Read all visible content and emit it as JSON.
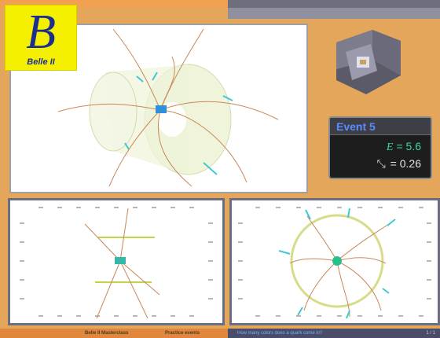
{
  "logo": {
    "letter": "B",
    "text": "Belle II"
  },
  "event": {
    "title": "Event 5",
    "energy_symbol": "E",
    "energy_value": "= 5.6",
    "angle_symbol": "⤡",
    "angle_value": "= 0.26"
  },
  "footer": {
    "course": "Belle II Masterclass",
    "section": "Practice events",
    "question": "How many colors does a quark come in?",
    "page": "1 / 1"
  },
  "colors": {
    "background": "#e3a65a",
    "panel_border": "#6d6d80",
    "event_title_text": "#5a8cff",
    "energy_text": "#41d6a6",
    "track": "#c9875a",
    "cluster": "#3fc9d6",
    "calorimeter": "#d8e0a0"
  },
  "icons": {
    "logo": "belle2-logo",
    "detector": "detector-thumbnail",
    "angle": "thrust-angle-icon"
  }
}
